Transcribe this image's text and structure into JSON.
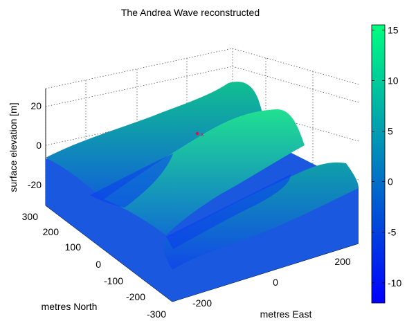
{
  "chart_data": {
    "type": "surface",
    "title": "The Andrea Wave reconstructed",
    "xlabel": "metres East",
    "ylabel": "metres North",
    "zlabel": "surface elevation [m]",
    "x_ticks": [
      "-200",
      "0",
      "200"
    ],
    "y_ticks": [
      "300",
      "200",
      "100",
      "0",
      "-100",
      "-200",
      "-300"
    ],
    "z_ticks": [
      "20",
      "0",
      "-20"
    ],
    "colorbar": {
      "ticks": [
        "15",
        "10",
        "5",
        "0",
        "-5",
        "-10"
      ],
      "min": -12,
      "max": 15.5,
      "colormap": [
        "#0000ff",
        "#00ff80"
      ]
    },
    "xlim": [
      -300,
      300
    ],
    "ylim": [
      -300,
      300
    ],
    "zlim": [
      -30,
      30
    ],
    "grid": true,
    "marker": {
      "label": "x",
      "color": "#ff0040"
    }
  }
}
